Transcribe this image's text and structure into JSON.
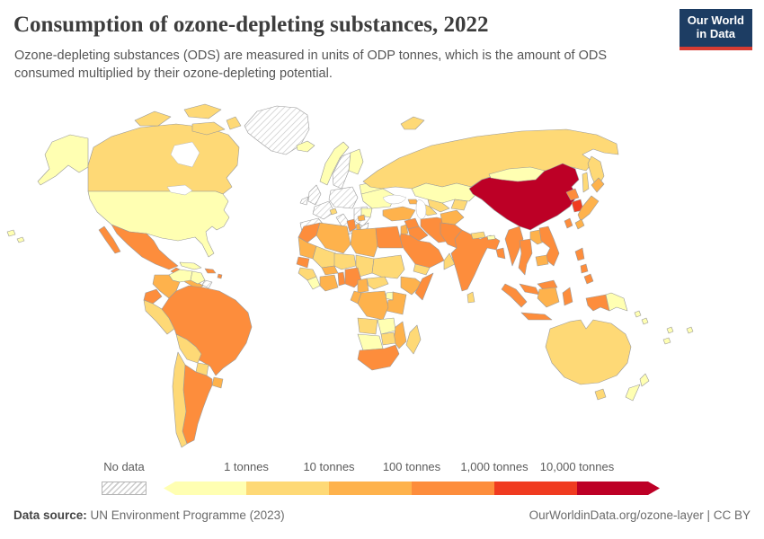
{
  "header": {
    "title": "Consumption of ozone-depleting substances, 2022",
    "subtitle": "Ozone-depleting substances (ODS) are measured in units of ODP tonnes, which is the amount of ODS consumed multiplied by their ozone-depleting potential.",
    "logo": {
      "line1": "Our World",
      "line2": "in Data"
    }
  },
  "chart_data": {
    "type": "choropleth",
    "title": "Consumption of ozone-depleting substances",
    "year": "2022",
    "unit": "ODP tonnes",
    "no_data_label": "No data",
    "legend_ticks": [
      "1 tonnes",
      "10 tonnes",
      "100 tonnes",
      "1,000 tonnes",
      "10,000 tonnes"
    ],
    "bin_colors": [
      "#ffffb2",
      "#fed976",
      "#feb24c",
      "#fd8d3c",
      "#f03b20",
      "#bd0026"
    ],
    "no_data_pattern": "gray-diagonal-hatch",
    "regions": {
      "united-states": 0,
      "canada": 1,
      "greenland": -1,
      "iceland": 0,
      "mexico": 3,
      "guatemala": 3,
      "central-america": 2,
      "cuba": 0,
      "hispaniola": 3,
      "jamaica": 2,
      "lesser-antilles": 3,
      "venezuela": 0,
      "guyana": 0,
      "suriname": -1,
      "colombia": 2,
      "ecuador": 3,
      "peru": 1,
      "brazil": 3,
      "bolivia": 1,
      "paraguay": 1,
      "uruguay": 2,
      "argentina": 3,
      "chile": 1,
      "norway": 0,
      "sweden": -1,
      "finland": 0,
      "united-kingdom": -1,
      "ireland": -1,
      "iberia": -1,
      "france": -1,
      "central-europe": -1,
      "italy": -1,
      "balkans": -1,
      "greece": -1,
      "baltics-belarus": 0,
      "ukraine": 0,
      "romania": 0,
      "switzerland": 1,
      "serbia": 2,
      "albania": 2,
      "russia": 1,
      "kazakhstan": 0,
      "uzbekistan": 1,
      "turkmenistan": 1,
      "kyrgyzstan-tajikistan": 1,
      "georgia-armenia": 2,
      "azerbaijan": 3,
      "turkey": 2,
      "syria": 3,
      "iraq": 3,
      "iran": 3,
      "saudi-arabia": 3,
      "yemen": 1,
      "oman": 1,
      "jordan-israel": 2,
      "morocco": 3,
      "algeria": 2,
      "tunisia": 3,
      "libya": 2,
      "egypt": 3,
      "mauritania": 2,
      "mali": 1,
      "niger": 1,
      "chad": 1,
      "sudan": 1,
      "senegal": 3,
      "guinea": 1,
      "sierra-leone-liberia": 0,
      "ivory-coast-ghana": 2,
      "burkina-faso": 2,
      "togo-benin": 3,
      "nigeria": 3,
      "cameroon": 2,
      "central-african-republic": 1,
      "ethiopia": 2,
      "somalia": 3,
      "kenya-tanzania": 2,
      "uganda": 0,
      "drc": 2,
      "gabon-congo": 2,
      "angola": 1,
      "zambia": 0,
      "zimbabwe": 1,
      "mozambique": 2,
      "namibia-botswana": 0,
      "south-africa": 3,
      "madagascar": 1,
      "afghanistan": 2,
      "pakistan": 3,
      "india": 3,
      "nepal": 1,
      "bhutan": 0,
      "bangladesh": 3,
      "sri-lanka": 1,
      "china": 5,
      "mongolia": 0,
      "taiwan": 3,
      "north-korea": 3,
      "south-korea": 4,
      "japan": 2,
      "myanmar": 3,
      "thailand": 3,
      "laos": 2,
      "vietnam": 3,
      "cambodia": 2,
      "philippines": 3,
      "malaysia": 3,
      "indonesia": 3,
      "indonesia-kalimantan": 2,
      "papua-new-guinea": 0,
      "pacific-islands": 0,
      "australia": 1,
      "new-zealand": 0
    }
  },
  "footer": {
    "source_label": "Data source:",
    "source": "UN Environment Programme (2023)",
    "right": "OurWorldinData.org/ozone-layer | CC BY"
  }
}
